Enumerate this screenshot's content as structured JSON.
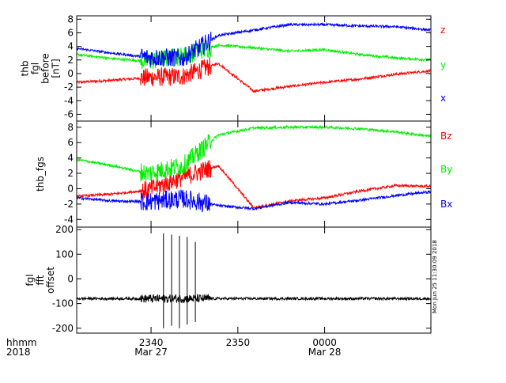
{
  "chart_data": [
    {
      "type": "line",
      "panel": "top",
      "ylabel_lines": [
        "thb",
        "fgl",
        "before",
        "[nT]"
      ],
      "ylim": [
        -7,
        8.5
      ],
      "yticks": [
        -6,
        -4,
        -2,
        0,
        2,
        4,
        6,
        8
      ],
      "x": [
        0,
        10,
        20,
        30,
        40,
        50,
        60,
        70,
        80,
        90,
        100
      ],
      "series": [
        {
          "name": "z",
          "color": "#ff0000",
          "values": [
            -1.3,
            -1.0,
            -0.6,
            -0.4,
            1.5,
            -2.6,
            -1.9,
            -1.3,
            -0.8,
            -0.1,
            0.4
          ]
        },
        {
          "name": "y",
          "color": "#00ee00",
          "values": [
            2.8,
            2.2,
            1.8,
            2.6,
            4.2,
            3.8,
            3.3,
            3.5,
            2.8,
            2.3,
            2.0
          ]
        },
        {
          "name": "x",
          "color": "#0000ff",
          "values": [
            3.7,
            3.0,
            2.4,
            2.3,
            5.6,
            6.4,
            7.2,
            7.2,
            7.0,
            6.9,
            6.4
          ]
        }
      ],
      "legend": [
        {
          "label": "z",
          "color": "#ff0000"
        },
        {
          "label": "y",
          "color": "#00ee00"
        },
        {
          "label": "x",
          "color": "#0000ff"
        }
      ]
    },
    {
      "type": "line",
      "panel": "middle",
      "ylabel_lines": [
        "thb_fgs"
      ],
      "ylim": [
        -5,
        8.8
      ],
      "yticks": [
        -4,
        -2,
        0,
        2,
        4,
        6,
        8
      ],
      "x": [
        0,
        10,
        20,
        30,
        40,
        50,
        60,
        70,
        80,
        90,
        100
      ],
      "series": [
        {
          "name": "Bz",
          "color": "#ff0000",
          "values": [
            -1.0,
            -0.7,
            -0.2,
            1.5,
            3.0,
            -2.5,
            -1.6,
            -1.2,
            -0.3,
            0.4,
            0.3
          ]
        },
        {
          "name": "By",
          "color": "#00ee00",
          "values": [
            3.8,
            3.0,
            2.0,
            3.0,
            7.0,
            7.9,
            8.0,
            8.0,
            7.8,
            7.4,
            6.8
          ]
        },
        {
          "name": "Bx",
          "color": "#0000ff",
          "values": [
            -1.2,
            -1.6,
            -1.7,
            -1.3,
            -2.2,
            -2.6,
            -1.8,
            -2.0,
            -1.5,
            -0.9,
            -0.4
          ]
        }
      ],
      "legend": [
        {
          "label": "Bz",
          "color": "#ff0000"
        },
        {
          "label": "By",
          "color": "#00ee00"
        },
        {
          "label": "Bx",
          "color": "#0000ff"
        }
      ]
    },
    {
      "type": "line",
      "panel": "bottom",
      "ylabel_lines": [
        "fgl",
        "fft",
        "offset"
      ],
      "ylim": [
        -220,
        210
      ],
      "yticks": [
        -200,
        -100,
        0,
        100,
        200
      ],
      "ytick_labels": [
        "-200",
        "-100",
        "0",
        "100",
        "200"
      ],
      "x": [
        0,
        10,
        20,
        30,
        40,
        50,
        60,
        70,
        80,
        90,
        100
      ],
      "series": [
        {
          "name": "offset",
          "color": "#000000",
          "values": [
            -80,
            -80,
            -80,
            -80,
            -80,
            -80,
            -80,
            -80,
            -80,
            -80,
            -80
          ]
        }
      ],
      "spikes": [
        {
          "x": 24.5,
          "hi": 185,
          "lo": -200
        },
        {
          "x": 26.8,
          "hi": 180,
          "lo": -190
        },
        {
          "x": 29.0,
          "hi": 175,
          "lo": -200
        },
        {
          "x": 31.2,
          "hi": 170,
          "lo": -185
        },
        {
          "x": 33.5,
          "hi": 150,
          "lo": -175
        }
      ]
    }
  ],
  "x_axis": {
    "ticks": [
      {
        "x": 21.0,
        "line1": "2340",
        "line2": "Mar 27"
      },
      {
        "x": 45.5,
        "line1": "2350",
        "line2": ""
      },
      {
        "x": 70.0,
        "line1": "0000",
        "line2": "Mar 28"
      }
    ],
    "corner_labels": [
      "hhmm",
      "2018"
    ]
  },
  "colors": {
    "red": "#ff0000",
    "green": "#00ee00",
    "blue": "#0000ff",
    "black": "#000000"
  },
  "stamp": "Mon Jun 25 11:30:09 2018"
}
